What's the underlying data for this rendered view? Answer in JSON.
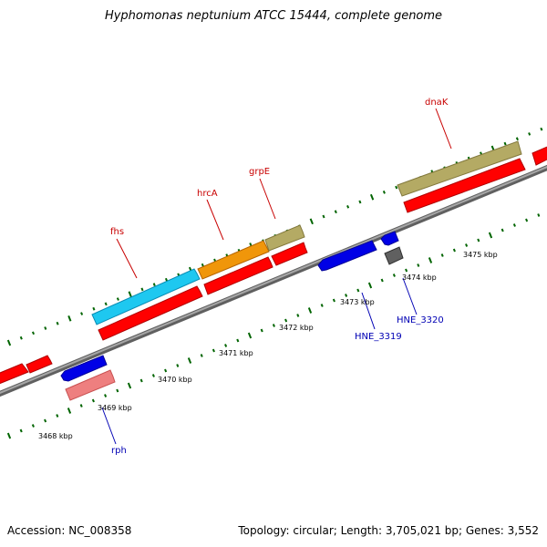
{
  "title": "Hyphomonas neptunium ATCC 15444, complete genome",
  "footer": {
    "accession": "Accession: NC_008358",
    "summary": "Topology: circular; Length: 3,705,021 bp; Genes: 3,552"
  },
  "kbp_labels": [
    "3468 kbp",
    "3469 kbp",
    "3470 kbp",
    "3471 kbp",
    "3472 kbp",
    "3473 kbp",
    "3474 kbp",
    "3475 kbp"
  ],
  "gene_labels": {
    "fhs": "fhs",
    "hrcA": "hrcA",
    "grpE": "grpE",
    "dnaK": "dnaK",
    "rph": "rph",
    "HNE_3319": "HNE_3319",
    "HNE_3320": "HNE_3320"
  },
  "colors": {
    "backbone": "#7f7f7f",
    "forward_cds": "#ff0000",
    "reverse_cds": "#0000e6",
    "fhs": "#1ec8f0",
    "hrcA": "#f0960a",
    "grpE": "#b4aa64",
    "dnaK": "#b4aa64",
    "rph": "#ee7f7f",
    "pseudo": "#606060",
    "forward_label": "#c80000",
    "reverse_label": "#0000b4",
    "ticks": "#006400"
  }
}
